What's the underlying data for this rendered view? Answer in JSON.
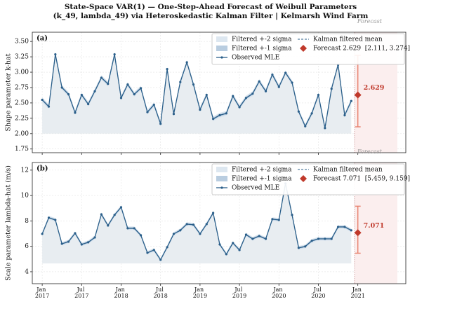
{
  "suptitle": [
    "State-Space VAR(1) — One-Step-Ahead Forecast of Weibull Parameters",
    "(k_49, lambda_49) via Heteroskedastic Kalman Filter  |  Kelmarsh Wind Farm"
  ],
  "chart_data": [
    {
      "type": "line",
      "panel_label": "(a)",
      "y_label": "Shape parameter  k-hat",
      "grid": true,
      "legend": "upper right",
      "x": [
        "2017-01",
        "2017-02",
        "2017-03",
        "2017-04",
        "2017-05",
        "2017-06",
        "2017-07",
        "2017-08",
        "2017-09",
        "2017-10",
        "2017-11",
        "2017-12",
        "2018-01",
        "2018-02",
        "2018-03",
        "2018-04",
        "2018-05",
        "2018-06",
        "2018-07",
        "2018-08",
        "2018-09",
        "2018-10",
        "2018-11",
        "2018-12",
        "2019-01",
        "2019-02",
        "2019-03",
        "2019-04",
        "2019-05",
        "2019-06",
        "2019-07",
        "2019-08",
        "2019-09",
        "2019-10",
        "2019-11",
        "2019-12",
        "2020-01",
        "2020-02",
        "2020-03",
        "2020-04",
        "2020-05",
        "2020-06",
        "2020-07",
        "2020-08",
        "2020-09",
        "2020-10",
        "2020-11",
        "2020-12"
      ],
      "series": [
        {
          "name": "Observed MLE",
          "color": "#2b5f8a",
          "values": [
            2.55,
            2.44,
            3.29,
            2.75,
            2.64,
            2.34,
            2.63,
            2.48,
            2.69,
            2.91,
            2.81,
            3.29,
            2.58,
            2.8,
            2.64,
            2.74,
            2.35,
            2.47,
            2.16,
            3.05,
            2.32,
            2.84,
            3.16,
            2.8,
            2.39,
            2.63,
            2.24,
            2.3,
            2.33,
            2.61,
            2.43,
            2.58,
            2.65,
            2.85,
            2.69,
            2.96,
            2.76,
            2.99,
            2.83,
            2.36,
            2.12,
            2.33,
            2.63,
            2.09,
            2.73,
            3.12,
            2.3,
            2.53
          ]
        },
        {
          "name": "Kalman filtered mean",
          "color": "#2b5f8a",
          "values": [
            2.55,
            2.44,
            3.29,
            2.75,
            2.64,
            2.34,
            2.63,
            2.48,
            2.69,
            2.91,
            2.81,
            3.29,
            2.58,
            2.8,
            2.64,
            2.74,
            2.35,
            2.47,
            2.16,
            3.05,
            2.32,
            2.84,
            3.16,
            2.8,
            2.39,
            2.63,
            2.24,
            2.3,
            2.33,
            2.61,
            2.43,
            2.58,
            2.65,
            2.85,
            2.69,
            2.96,
            2.76,
            2.99,
            2.83,
            2.36,
            2.12,
            2.33,
            2.63,
            2.09,
            2.73,
            3.12,
            2.3,
            2.53
          ]
        }
      ],
      "bands": [
        {
          "name": "Filtered +-2 sigma",
          "color": "#dde7f0",
          "halfwidth": 0.04
        },
        {
          "name": "Filtered +-1 sigma",
          "color": "#b9cde0",
          "halfwidth": 0.02
        }
      ],
      "fill_baseline": 2.0,
      "forecast": {
        "name": "Forecast 2.629  [2.111, 3.274]",
        "x": "2021-01",
        "value": 2.629,
        "lower": 2.111,
        "upper": 3.274,
        "color": "#c0392b",
        "interval_color": "#e8836f"
      },
      "forecast_region": {
        "label": "Forecast",
        "x": [
          "2020-12-16",
          "2021-07-01"
        ]
      },
      "xlim": [
        "2016-11-16",
        "2021-08-10"
      ],
      "ylim": [
        1.69,
        3.65
      ],
      "xticks": [
        "2017-01",
        "2017-07",
        "2018-01",
        "2018-07",
        "2019-01",
        "2019-07",
        "2020-01",
        "2020-07",
        "2021-01"
      ],
      "yticks": [
        1.75,
        {
          "value": 2.0,
          "label": "2.00"
        },
        2.25,
        {
          "value": 2.5,
          "label": "2.50"
        },
        2.75,
        {
          "value": 3.0,
          "label": "3.00"
        },
        3.25,
        {
          "value": 3.5,
          "label": "3.50"
        }
      ]
    },
    {
      "type": "line",
      "panel_label": "(b)",
      "y_label": "Scale parameter  lambda-hat  (m/s)",
      "grid": true,
      "legend": "upper right",
      "x": [
        "2017-01",
        "2017-02",
        "2017-03",
        "2017-04",
        "2017-05",
        "2017-06",
        "2017-07",
        "2017-08",
        "2017-09",
        "2017-10",
        "2017-11",
        "2017-12",
        "2018-01",
        "2018-02",
        "2018-03",
        "2018-04",
        "2018-05",
        "2018-06",
        "2018-07",
        "2018-08",
        "2018-09",
        "2018-10",
        "2018-11",
        "2018-12",
        "2019-01",
        "2019-02",
        "2019-03",
        "2019-04",
        "2019-05",
        "2019-06",
        "2019-07",
        "2019-08",
        "2019-09",
        "2019-10",
        "2019-11",
        "2019-12",
        "2020-01",
        "2020-02",
        "2020-03",
        "2020-04",
        "2020-05",
        "2020-06",
        "2020-07",
        "2020-08",
        "2020-09",
        "2020-10",
        "2020-11",
        "2020-12"
      ],
      "series": [
        {
          "name": "Observed MLE",
          "color": "#2b5f8a",
          "values": [
            6.98,
            8.25,
            8.08,
            6.2,
            6.37,
            7.03,
            6.15,
            6.32,
            6.7,
            8.52,
            7.64,
            8.47,
            9.08,
            7.42,
            7.42,
            6.87,
            5.49,
            5.71,
            4.94,
            5.93,
            6.98,
            7.26,
            7.75,
            7.7,
            6.98,
            7.75,
            8.63,
            6.15,
            5.38,
            6.26,
            5.71,
            6.92,
            6.59,
            6.81,
            6.59,
            8.14,
            8.08,
            10.95,
            8.47,
            5.88,
            5.99,
            6.43,
            6.59,
            6.59,
            6.59,
            7.53,
            7.53,
            7.26
          ]
        },
        {
          "name": "Kalman filtered mean",
          "color": "#2b5f8a",
          "values": [
            6.98,
            8.25,
            8.08,
            6.2,
            6.37,
            7.03,
            6.15,
            6.32,
            6.7,
            8.52,
            7.64,
            8.47,
            9.08,
            7.42,
            7.42,
            6.87,
            5.49,
            5.71,
            4.94,
            5.93,
            6.98,
            7.26,
            7.75,
            7.7,
            6.98,
            7.75,
            8.63,
            6.15,
            5.38,
            6.26,
            5.71,
            6.92,
            6.59,
            6.81,
            6.59,
            8.14,
            8.08,
            10.95,
            8.47,
            5.88,
            5.99,
            6.43,
            6.59,
            6.59,
            6.59,
            7.53,
            7.53,
            7.26
          ]
        }
      ],
      "bands": [
        {
          "name": "Filtered +-2 sigma",
          "color": "#dde7f0",
          "halfwidth": 0.15
        },
        {
          "name": "Filtered +-1 sigma",
          "color": "#b9cde0",
          "halfwidth": 0.08
        }
      ],
      "fill_baseline": 4.65,
      "forecast": {
        "name": "Forecast 7.071  [5.459, 9.159]",
        "x": "2021-01",
        "value": 7.071,
        "lower": 5.459,
        "upper": 9.159,
        "color": "#c0392b",
        "interval_color": "#e8836f"
      },
      "forecast_region": {
        "label": "Forecast",
        "x": [
          "2020-12-16",
          "2021-07-01"
        ]
      },
      "xlim": [
        "2016-11-16",
        "2021-08-10"
      ],
      "ylim": [
        3.06,
        12.6
      ],
      "xticks": [
        {
          "value": "2017-01",
          "label": "Jan 2017"
        },
        {
          "value": "2017-07",
          "label": "Jul 2017"
        },
        {
          "value": "2018-01",
          "label": "Jan 2018"
        },
        {
          "value": "2018-07",
          "label": "Jul 2018"
        },
        {
          "value": "2019-01",
          "label": "Jan 2019"
        },
        {
          "value": "2019-07",
          "label": "Jul 2019"
        },
        {
          "value": "2020-01",
          "label": "Jan 2020"
        },
        {
          "value": "2020-07",
          "label": "Jul 2020"
        },
        {
          "value": "2021-01",
          "label": "Jan 2021"
        }
      ],
      "yticks": [
        4,
        6,
        8,
        10,
        12
      ]
    }
  ]
}
